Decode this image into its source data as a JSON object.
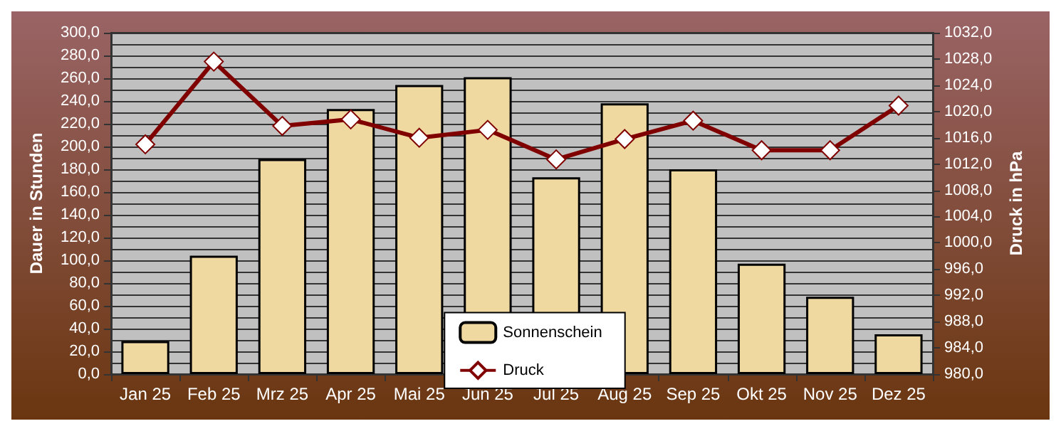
{
  "chart_data": {
    "type": "bar",
    "categories": [
      "Jan 25",
      "Feb 25",
      "Mrz 25",
      "Apr 25",
      "Mai 25",
      "Jun 25",
      "Jul 25",
      "Aug 25",
      "Sep 25",
      "Okt 25",
      "Nov 25",
      "Dez 25"
    ],
    "ylabel": "Dauer in Stunden",
    "y2label": "Druck in hPa",
    "series": [
      {
        "name": "Sonnenschein",
        "color": "#f0d9a0",
        "values": [
          29,
          104,
          189,
          233,
          254,
          261,
          173,
          238,
          180,
          97,
          68,
          35
        ]
      },
      {
        "name": "Druck",
        "type": "line",
        "axis": "y2",
        "color": "#800000",
        "marker": "diamond",
        "values": [
          1015.0,
          1027.6,
          1017.8,
          1018.8,
          1016.0,
          1017.2,
          1012.7,
          1015.8,
          1018.6,
          1014.1,
          1014.1,
          1020.9
        ]
      }
    ],
    "ylim": [
      0,
      300
    ],
    "yticks": [
      {
        "value": 0,
        "label": "0,0"
      },
      {
        "value": 20,
        "label": "20,0"
      },
      {
        "value": 40,
        "label": "40,0"
      },
      {
        "value": 60,
        "label": "60,0"
      },
      {
        "value": 80,
        "label": "80,0"
      },
      {
        "value": 100,
        "label": "100,0"
      },
      {
        "value": 120,
        "label": "120,0"
      },
      {
        "value": 140,
        "label": "140,0"
      },
      {
        "value": 160,
        "label": "160,0"
      },
      {
        "value": 180,
        "label": "180,0"
      },
      {
        "value": 200,
        "label": "200,0"
      },
      {
        "value": 220,
        "label": "220,0"
      },
      {
        "value": 240,
        "label": "240,0"
      },
      {
        "value": 260,
        "label": "260,0"
      },
      {
        "value": 280,
        "label": "280,0"
      },
      {
        "value": 300,
        "label": "300,0"
      }
    ],
    "y2lim": [
      980,
      1032
    ],
    "y2ticks": [
      {
        "value": 980,
        "label": "980,0"
      },
      {
        "value": 984,
        "label": "984,0"
      },
      {
        "value": 988,
        "label": "988,0"
      },
      {
        "value": 992,
        "label": "992,0"
      },
      {
        "value": 996,
        "label": "996,0"
      },
      {
        "value": 1000,
        "label": "1000,0"
      },
      {
        "value": 1004,
        "label": "1004,0"
      },
      {
        "value": 1008,
        "label": "1008,0"
      },
      {
        "value": 1012,
        "label": "1012,0"
      },
      {
        "value": 1016,
        "label": "1016,0"
      },
      {
        "value": 1020,
        "label": "1020,0"
      },
      {
        "value": 1024,
        "label": "1024,0"
      },
      {
        "value": 1028,
        "label": "1028,0"
      },
      {
        "value": 1032,
        "label": "1032,0"
      }
    ],
    "grid": true,
    "legend": "bottom"
  }
}
